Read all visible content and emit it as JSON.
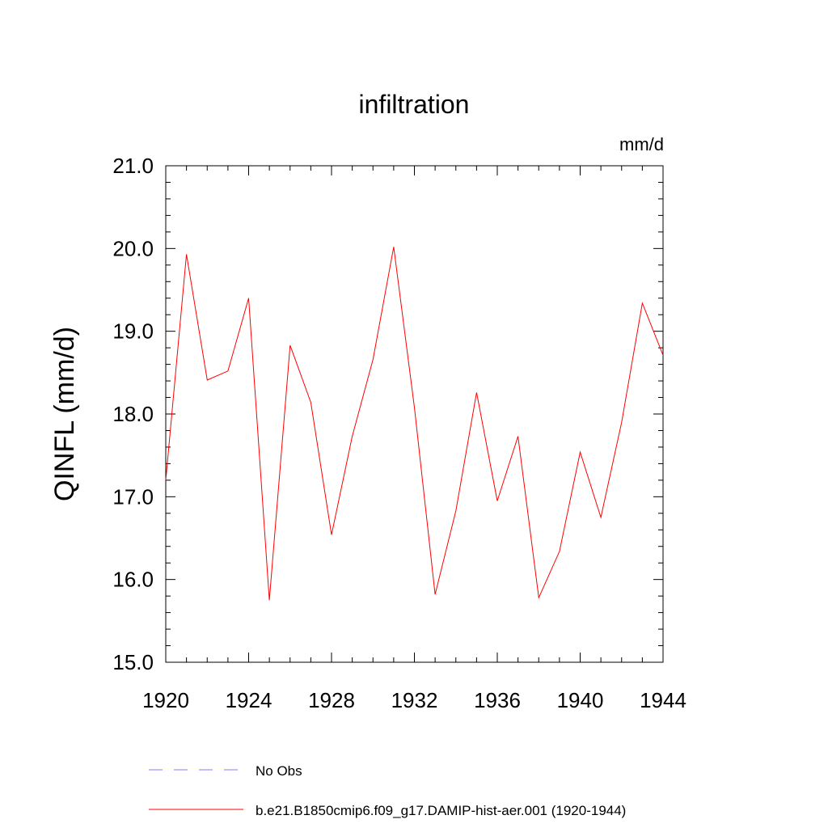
{
  "chart_data": {
    "type": "line",
    "title": "infiltration",
    "units": "mm/d",
    "ylabel": "QINFL  (mm/d)",
    "xlabel": "",
    "xlim": [
      1920,
      1944
    ],
    "ylim": [
      15.0,
      21.0
    ],
    "x_ticks": [
      1920,
      1924,
      1928,
      1932,
      1936,
      1940,
      1944
    ],
    "x_tick_labels": [
      "1920",
      "1924",
      "1928",
      "1932",
      "1936",
      "1940",
      "1944"
    ],
    "y_ticks": [
      15.0,
      16.0,
      17.0,
      18.0,
      19.0,
      20.0,
      21.0
    ],
    "y_tick_labels": [
      "15.0",
      "16.0",
      "17.0",
      "18.0",
      "19.0",
      "20.0",
      "21.0"
    ],
    "grid": false,
    "legend_position": "bottom",
    "x": [
      1920,
      1921,
      1922,
      1923,
      1924,
      1925,
      1926,
      1927,
      1928,
      1929,
      1930,
      1931,
      1932,
      1933,
      1934,
      1935,
      1936,
      1937,
      1938,
      1939,
      1940,
      1941,
      1942,
      1943,
      1944
    ],
    "series": [
      {
        "name": "b.e21.B1850cmip6.f09_g17.DAMIP-hist-aer.001 (1920-1944)",
        "color": "#ff0000",
        "dash": "solid",
        "values": [
          17.2,
          19.93,
          18.41,
          18.52,
          19.4,
          15.75,
          18.83,
          18.14,
          16.54,
          17.73,
          18.66,
          20.02,
          18.08,
          15.82,
          16.83,
          18.26,
          16.95,
          17.73,
          15.78,
          16.34,
          17.54,
          16.75,
          17.9,
          19.34,
          18.71
        ]
      }
    ],
    "legend": [
      {
        "label": "No Obs",
        "color": "#7b7bff",
        "dash": "dashed"
      },
      {
        "label": "b.e21.B1850cmip6.f09_g17.DAMIP-hist-aer.001 (1920-1944)",
        "color": "#ff0000",
        "dash": "solid"
      }
    ]
  }
}
